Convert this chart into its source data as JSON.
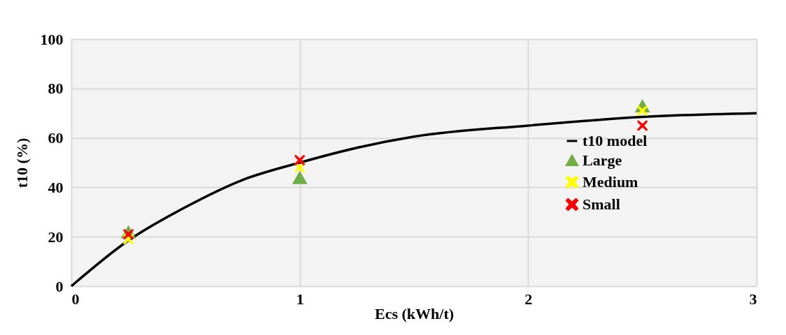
{
  "chart_data": {
    "type": "scatter",
    "xlabel": "Ecs (kWh/t)",
    "ylabel": "t10 (%)",
    "xlim": [
      0,
      3
    ],
    "xticks": [
      0,
      1,
      2,
      3
    ],
    "ylim": [
      0,
      100
    ],
    "yticks": [
      0,
      20,
      40,
      60,
      80,
      100
    ],
    "grid": true,
    "legend": "right",
    "series": [
      {
        "name": "t10 model",
        "type": "line",
        "color": "#000000",
        "marker": "none",
        "line_style": "solid",
        "x": [
          0,
          0.25,
          0.5,
          0.75,
          1,
          1.25,
          1.5,
          2,
          2.5,
          3
        ],
        "values": [
          0,
          18.5,
          32,
          43,
          50,
          56,
          60.5,
          65,
          68.5,
          70
        ]
      },
      {
        "name": "Large",
        "color": "#70ad47",
        "marker": "triangle",
        "x": [
          0.25,
          1,
          2.5
        ],
        "values": [
          22,
          44,
          73
        ]
      },
      {
        "name": "Medium",
        "color": "#ffff00",
        "marker": "cross",
        "x": [
          0.25,
          1,
          2.5
        ],
        "values": [
          19,
          48,
          71
        ]
      },
      {
        "name": "Small",
        "color": "#ff0000",
        "marker": "cross",
        "x": [
          0.25,
          1,
          2.5
        ],
        "values": [
          21,
          51,
          65
        ]
      }
    ]
  }
}
